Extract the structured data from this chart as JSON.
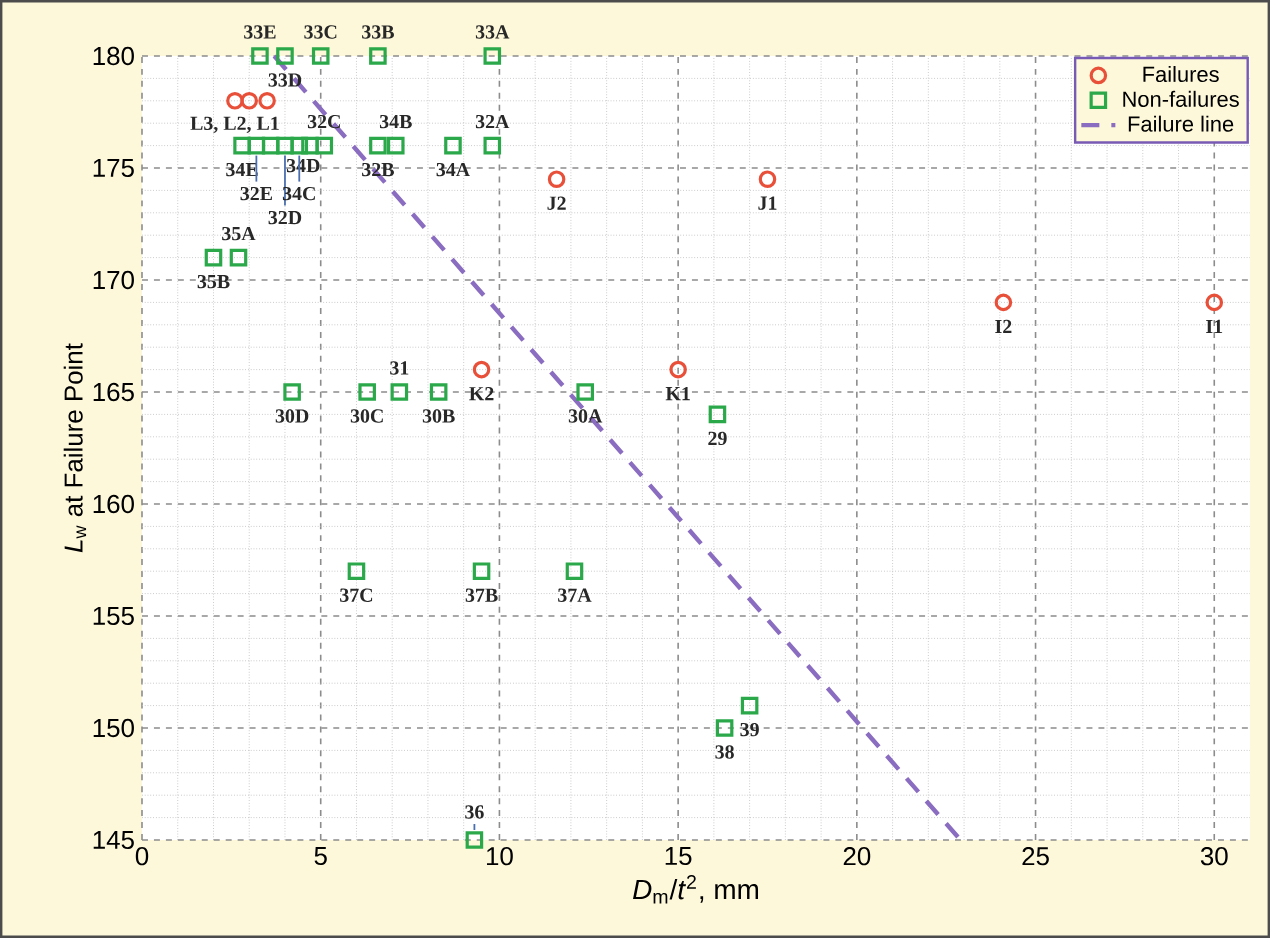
{
  "chart_data": {
    "type": "scatter",
    "xlabel": "*D*$_{m}$/*t*$^{2}$, mm",
    "ylabel": "*L*$_{w}$ at Failure Point",
    "xlim": [
      0,
      31
    ],
    "ylim": [
      145,
      180
    ],
    "xticks": [
      0,
      5,
      10,
      15,
      20,
      25,
      30
    ],
    "yticks": [
      145,
      150,
      155,
      160,
      165,
      170,
      175,
      180
    ],
    "grid": true,
    "legend": "top right",
    "series": [
      {
        "name": "Failures",
        "marker": "circle",
        "color": "#e8503a",
        "x": [
          2.6,
          3.0,
          3.5,
          11.6,
          17.5,
          24.1,
          30.0,
          9.5,
          15.0
        ],
        "values": [
          178,
          178,
          178,
          174.5,
          174.5,
          169,
          169,
          166,
          166
        ]
      },
      {
        "name": "Non-failures",
        "marker": "square",
        "color": "#2aa84a",
        "x": [
          3.3,
          4.0,
          5.0,
          6.6,
          9.8,
          2.8,
          3.2,
          3.6,
          4.0,
          4.4,
          4.7,
          5.1,
          6.6,
          7.1,
          8.7,
          9.8,
          2.0,
          2.7,
          4.2,
          6.3,
          7.2,
          8.3,
          12.4,
          6.0,
          9.5,
          12.1,
          9.3,
          16.1,
          16.3,
          17.0
        ],
        "values": [
          180,
          180,
          180,
          180,
          180,
          176,
          176,
          176,
          176,
          176,
          176,
          176,
          176,
          176,
          176,
          176,
          171,
          171,
          165,
          165,
          165,
          165,
          165,
          157,
          157,
          157,
          145,
          164,
          150,
          151
        ]
      },
      {
        "name": "Failure line",
        "type": "line",
        "marker": "none",
        "line_style": "dashed",
        "color": "#8a6cc0",
        "x": [
          3.7,
          22.9
        ],
        "values": [
          180,
          145
        ]
      }
    ],
    "annotations": [
      {
        "text": "L3, L2, L1",
        "x": 2.6,
        "y": 178
      },
      {
        "text": "34E",
        "x": 2.8,
        "y": 176
      },
      {
        "text": "32E",
        "x": 3.2,
        "y": 176
      },
      {
        "text": "33E",
        "x": 3.3,
        "y": 180
      },
      {
        "text": "33D",
        "x": 4.0,
        "y": 180
      },
      {
        "text": "33C",
        "x": 5.0,
        "y": 180
      },
      {
        "text": "33B",
        "x": 6.6,
        "y": 180
      },
      {
        "text": "33A",
        "x": 9.8,
        "y": 180
      },
      {
        "text": "34D",
        "x": 3.6,
        "y": 176
      },
      {
        "text": "32D",
        "x": 4.0,
        "y": 176
      },
      {
        "text": "34C",
        "x": 4.4,
        "y": 176
      },
      {
        "text": "32C",
        "x": 5.1,
        "y": 176
      },
      {
        "text": "32B",
        "x": 6.6,
        "y": 176
      },
      {
        "text": "34B",
        "x": 7.1,
        "y": 176
      },
      {
        "text": "34A",
        "x": 8.7,
        "y": 176
      },
      {
        "text": "32A",
        "x": 9.8,
        "y": 176
      },
      {
        "text": "J2",
        "x": 11.6,
        "y": 174.5
      },
      {
        "text": "J1",
        "x": 17.5,
        "y": 174.5
      },
      {
        "text": "35B",
        "x": 2.0,
        "y": 171
      },
      {
        "text": "35A",
        "x": 2.7,
        "y": 171
      },
      {
        "text": "30D",
        "x": 4.2,
        "y": 165
      },
      {
        "text": "30C",
        "x": 6.3,
        "y": 165
      },
      {
        "text": "31",
        "x": 7.2,
        "y": 165
      },
      {
        "text": "30B",
        "x": 8.3,
        "y": 165
      },
      {
        "text": "30A",
        "x": 12.4,
        "y": 165
      },
      {
        "text": "K2",
        "x": 9.5,
        "y": 166
      },
      {
        "text": "K1",
        "x": 15.0,
        "y": 166
      },
      {
        "text": "29",
        "x": 16.1,
        "y": 164
      },
      {
        "text": "I2",
        "x": 24.1,
        "y": 169
      },
      {
        "text": "I1",
        "x": 30.0,
        "y": 169
      },
      {
        "text": "37C",
        "x": 6.0,
        "y": 157
      },
      {
        "text": "37B",
        "x": 9.5,
        "y": 157
      },
      {
        "text": "37A",
        "x": 12.1,
        "y": 157
      },
      {
        "text": "36",
        "x": 9.3,
        "y": 145
      },
      {
        "text": "38",
        "x": 16.3,
        "y": 150
      },
      {
        "text": "39",
        "x": 17.0,
        "y": 151
      }
    ]
  }
}
